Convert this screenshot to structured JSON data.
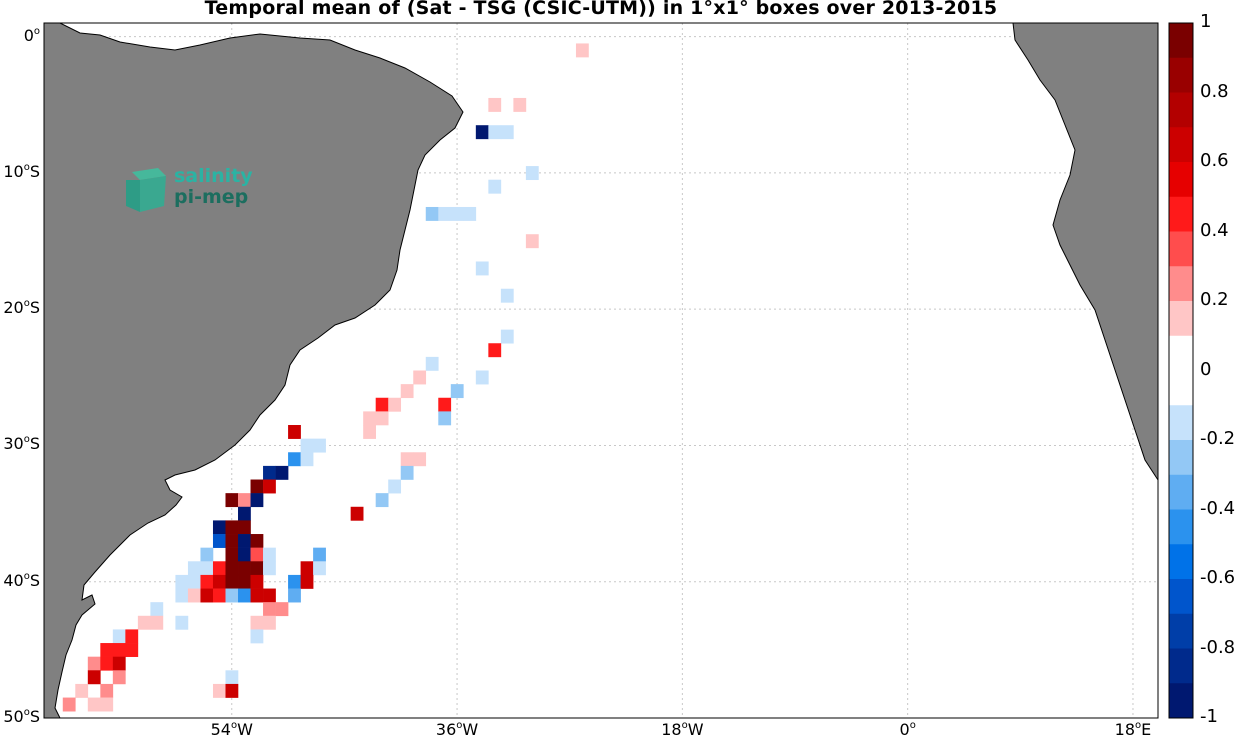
{
  "title": "Temporal mean of (Sat - TSG (CSIC-UTM)) in 1°x1° boxes over 2013-2015",
  "logo": {
    "line1": "salinity",
    "line2": "pi-mep"
  },
  "lat_ticks": [
    {
      "deg": "0",
      "hemi": ""
    },
    {
      "deg": "10",
      "hemi": "S"
    },
    {
      "deg": "20",
      "hemi": "S"
    },
    {
      "deg": "30",
      "hemi": "S"
    },
    {
      "deg": "40",
      "hemi": "S"
    },
    {
      "deg": "50",
      "hemi": "S"
    }
  ],
  "lon_ticks": [
    {
      "deg": "54",
      "hemi": "W"
    },
    {
      "deg": "36",
      "hemi": "W"
    },
    {
      "deg": "18",
      "hemi": "W"
    },
    {
      "deg": "0",
      "hemi": ""
    },
    {
      "deg": "18",
      "hemi": "E"
    }
  ],
  "colorbar": {
    "range": [
      -1,
      1
    ],
    "ticks": [
      "1",
      "0.8",
      "0.6",
      "0.4",
      "0.2",
      "0",
      "-0.2",
      "-0.4",
      "-0.6",
      "-0.8",
      "-1"
    ],
    "colors": [
      "#7a0000",
      "#990000",
      "#b30000",
      "#cc0000",
      "#e60000",
      "#ff1a1a",
      "#ff4d4d",
      "#ff8c8c",
      "#ffc6c6",
      "#ffffff",
      "#ffffff",
      "#c6e2fb",
      "#93c8f5",
      "#5fadf2",
      "#2b92ee",
      "#0072e8",
      "#0055cc",
      "#003ea8",
      "#002a8c",
      "#001870"
    ]
  },
  "chart_data": {
    "type": "heatmap",
    "title": "Temporal mean of (Sat - TSG (CSIC-UTM)) in 1°x1° boxes over 2013-2015",
    "lon_range": [
      -69,
      20
    ],
    "lat_range": [
      -50,
      1
    ],
    "value_range": [
      -1,
      1
    ],
    "cells": [
      [
        -26,
        -1,
        0.15
      ],
      [
        -33,
        -5,
        0.15
      ],
      [
        -31,
        -5,
        0.15
      ],
      [
        -34,
        -7,
        -0.9
      ],
      [
        -33,
        -7,
        -0.1
      ],
      [
        -32,
        -7,
        -0.1
      ],
      [
        -30,
        -10,
        -0.1
      ],
      [
        -33,
        -11,
        -0.1
      ],
      [
        -38,
        -13,
        -0.25
      ],
      [
        -37,
        -13,
        -0.1
      ],
      [
        -36,
        -13,
        -0.1
      ],
      [
        -35,
        -13,
        -0.1
      ],
      [
        -30,
        -15,
        0.15
      ],
      [
        -34,
        -17,
        -0.1
      ],
      [
        -32,
        -19,
        -0.1
      ],
      [
        -32,
        -22,
        -0.1
      ],
      [
        -33,
        -23,
        0.45
      ],
      [
        -38,
        -24,
        -0.1
      ],
      [
        -39,
        -25,
        0.15
      ],
      [
        -34,
        -25,
        -0.1
      ],
      [
        -40,
        -26,
        0.15
      ],
      [
        -36,
        -26,
        -0.25
      ],
      [
        -42,
        -27,
        0.5
      ],
      [
        -41,
        -27,
        0.15
      ],
      [
        -37,
        -27,
        0.5
      ],
      [
        -43,
        -28,
        0.15
      ],
      [
        -42,
        -28,
        0.15
      ],
      [
        -37,
        -28,
        -0.25
      ],
      [
        -43,
        -29,
        0.15
      ],
      [
        -49,
        -29,
        0.65
      ],
      [
        -48,
        -30,
        -0.1
      ],
      [
        -47,
        -30,
        -0.1
      ],
      [
        -40,
        -31,
        0.15
      ],
      [
        -39,
        -31,
        0.15
      ],
      [
        -49,
        -31,
        -0.45
      ],
      [
        -48,
        -31,
        -0.1
      ],
      [
        -40,
        -32,
        -0.25
      ],
      [
        -51,
        -32,
        -0.85
      ],
      [
        -50,
        -32,
        -0.9
      ],
      [
        -41,
        -33,
        -0.1
      ],
      [
        -52,
        -33,
        0.9
      ],
      [
        -51,
        -33,
        0.65
      ],
      [
        -42,
        -34,
        -0.25
      ],
      [
        -54,
        -34,
        0.9
      ],
      [
        -53,
        -34,
        0.3
      ],
      [
        -52,
        -34,
        -0.9
      ],
      [
        -44,
        -35,
        0.65
      ],
      [
        -53,
        -35,
        -0.9
      ],
      [
        -55,
        -36,
        -0.95
      ],
      [
        -54,
        -36,
        0.9
      ],
      [
        -53,
        -36,
        0.9
      ],
      [
        -55,
        -37,
        -0.6
      ],
      [
        -54,
        -37,
        0.9
      ],
      [
        -53,
        -37,
        -0.9
      ],
      [
        -52,
        -37,
        0.9
      ],
      [
        -56,
        -38,
        -0.25
      ],
      [
        -54,
        -38,
        0.9
      ],
      [
        -53,
        -38,
        -0.9
      ],
      [
        -52,
        -38,
        0.35
      ],
      [
        -51,
        -38,
        -0.1
      ],
      [
        -47,
        -38,
        -0.3
      ],
      [
        -57,
        -39,
        -0.1
      ],
      [
        -56,
        -39,
        -0.1
      ],
      [
        -55,
        -39,
        0.5
      ],
      [
        -54,
        -39,
        0.9
      ],
      [
        -53,
        -39,
        0.9
      ],
      [
        -52,
        -39,
        0.9
      ],
      [
        -51,
        -39,
        -0.1
      ],
      [
        -48,
        -39,
        0.65
      ],
      [
        -47,
        -39,
        -0.1
      ],
      [
        -58,
        -40,
        -0.1
      ],
      [
        -57,
        -40,
        -0.1
      ],
      [
        -56,
        -40,
        0.5
      ],
      [
        -55,
        -40,
        0.65
      ],
      [
        -54,
        -40,
        0.9
      ],
      [
        -53,
        -40,
        0.9
      ],
      [
        -52,
        -40,
        0.65
      ],
      [
        -49,
        -40,
        -0.4
      ],
      [
        -48,
        -40,
        0.65
      ],
      [
        -58,
        -41,
        -0.1
      ],
      [
        -57,
        -41,
        0.15
      ],
      [
        -56,
        -41,
        0.65
      ],
      [
        -55,
        -41,
        0.5
      ],
      [
        -54,
        -41,
        -0.25
      ],
      [
        -53,
        -41,
        -0.45
      ],
      [
        -52,
        -41,
        0.65
      ],
      [
        -51,
        -41,
        0.65
      ],
      [
        -49,
        -41,
        -0.3
      ],
      [
        -60,
        -42,
        -0.1
      ],
      [
        -51,
        -42,
        0.3
      ],
      [
        -50,
        -42,
        0.3
      ],
      [
        -61,
        -43,
        0.15
      ],
      [
        -60,
        -43,
        0.15
      ],
      [
        -58,
        -43,
        -0.1
      ],
      [
        -52,
        -43,
        0.15
      ],
      [
        -51,
        -43,
        0.15
      ],
      [
        -63,
        -44,
        -0.1
      ],
      [
        -62,
        -44,
        0.5
      ],
      [
        -52,
        -44,
        -0.1
      ],
      [
        -64,
        -45,
        0.5
      ],
      [
        -63,
        -45,
        0.5
      ],
      [
        -62,
        -45,
        0.5
      ],
      [
        -65,
        -46,
        0.3
      ],
      [
        -64,
        -46,
        0.5
      ],
      [
        -63,
        -46,
        0.65
      ],
      [
        -65,
        -47,
        0.65
      ],
      [
        -63,
        -47,
        0.3
      ],
      [
        -54,
        -47,
        -0.1
      ],
      [
        -66,
        -48,
        0.15
      ],
      [
        -64,
        -48,
        0.3
      ],
      [
        -55,
        -48,
        0.15
      ],
      [
        -54,
        -48,
        0.65
      ],
      [
        -67,
        -49,
        0.3
      ],
      [
        -65,
        -49,
        0.15
      ],
      [
        -64,
        -49,
        0.15
      ]
    ]
  }
}
